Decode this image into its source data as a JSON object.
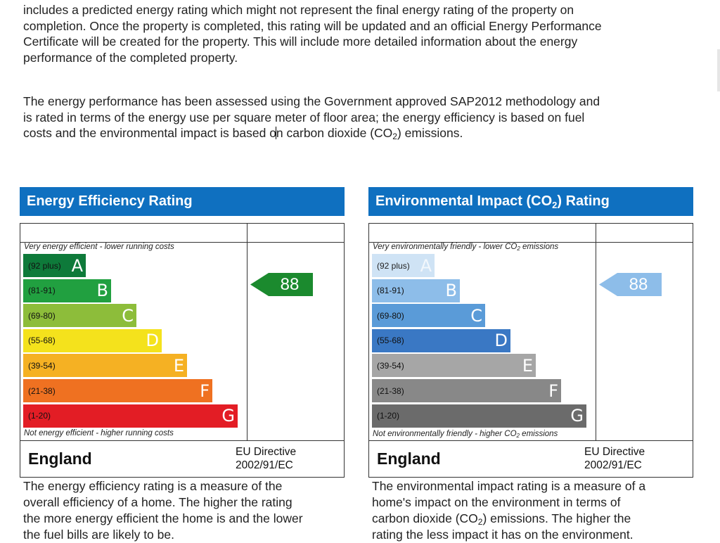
{
  "intro": {
    "paragraph1": "includes a predicted energy rating which might not represent the final energy rating of the property on\ncompletion. Once the property is completed, this rating will be updated and an official Energy Performance\nCertificate will be created for the property. This will include more detailed information about the energy\nperformance of the completed property.",
    "paragraph2_a": "The energy performance has been assessed using the Government approved SAP2012 methodology and\nis rated in terms of the energy use per square meter of floor area; the energy efficiency is based on fuel\ncosts and the environmental impact is based o",
    "paragraph2_b": "n carbon dioxide (CO",
    "paragraph2_sub": "2",
    "paragraph2_c": ") emissions."
  },
  "energy_panel": {
    "title": "Energy Efficiency Rating",
    "top_note": "Very energy efficient - lower running costs",
    "bottom_note": "Not energy efficient - higher running costs",
    "current_value": "88",
    "arrow_color": "#1b8a2e",
    "country": "England",
    "directive": "EU Directive\n2002/91/EC",
    "bands": [
      {
        "range": "(92 plus)",
        "letter": "A",
        "color": "#0e7a3a"
      },
      {
        "range": "(81-91)",
        "letter": "B",
        "color": "#21a040"
      },
      {
        "range": "(69-80)",
        "letter": "C",
        "color": "#8dbd3a"
      },
      {
        "range": "(55-68)",
        "letter": "D",
        "color": "#f4e21c"
      },
      {
        "range": "(39-54)",
        "letter": "E",
        "color": "#f5b123"
      },
      {
        "range": "(21-38)",
        "letter": "F",
        "color": "#ef7121"
      },
      {
        "range": "(1-20)",
        "letter": "G",
        "color": "#e31d25"
      }
    ],
    "description": "The energy efficiency rating is a measure of the\noverall efficiency of a home. The higher the rating\nthe more energy efficient the home is and the lower\nthe fuel bills are likely to be."
  },
  "co2_panel": {
    "title_a": "Environmental Impact (CO",
    "title_sub": "2",
    "title_b": ") Rating",
    "top_note_a": "Very environmentally friendly - lower CO",
    "top_note_sub": "2",
    "top_note_b": " emissions",
    "bottom_note_a": "Not environmentally friendly - higher CO",
    "bottom_note_sub": "2",
    "bottom_note_b": " emissions",
    "current_value": "88",
    "arrow_color": "#8dbde9",
    "country": "England",
    "directive": "EU Directive\n2002/91/EC",
    "bands": [
      {
        "range": "(92 plus)",
        "letter": "A",
        "color": "#cfe3f5"
      },
      {
        "range": "(81-91)",
        "letter": "B",
        "color": "#8dbde9"
      },
      {
        "range": "(69-80)",
        "letter": "C",
        "color": "#5a9bd8"
      },
      {
        "range": "(55-68)",
        "letter": "D",
        "color": "#3a78c4"
      },
      {
        "range": "(39-54)",
        "letter": "E",
        "color": "#a6a6a6"
      },
      {
        "range": "(21-38)",
        "letter": "F",
        "color": "#888888"
      },
      {
        "range": "(1-20)",
        "letter": "G",
        "color": "#6b6b6b"
      }
    ],
    "description_a": "The environmental impact rating is a measure of a\nhome's impact on the environment in terms of\ncarbon dioxide (CO",
    "description_sub": "2",
    "description_b": ") emissions. The higher the\nrating the less impact it has on the environment."
  }
}
